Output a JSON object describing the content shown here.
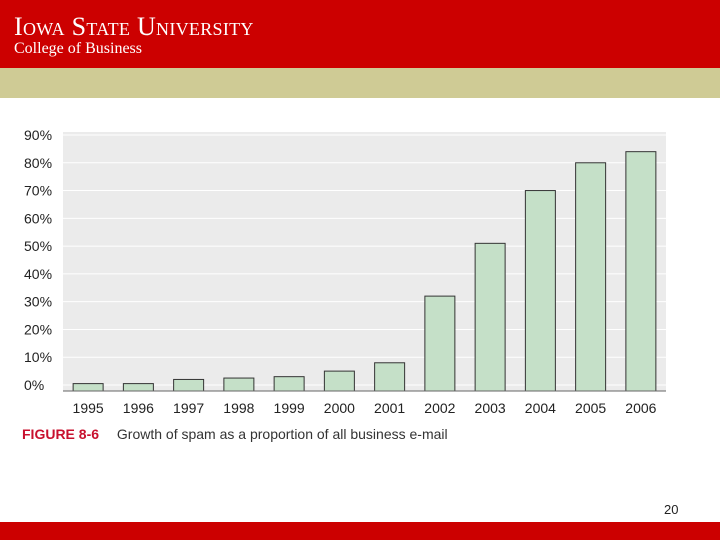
{
  "header": {
    "university": "Iowa State University",
    "college": "College of Business"
  },
  "colors": {
    "header_red": "#cc0000",
    "band": "#cfcb95",
    "bar_fill": "#c5e0c8",
    "plot_bg": "#ebebeb",
    "caption_accent": "#c8102e"
  },
  "caption": {
    "figure_label": "FIGURE 8-6",
    "text": "Growth of spam as a proportion of all business e-mail"
  },
  "page_number": "20",
  "chart_data": {
    "type": "bar",
    "title": "Growth of spam as a proportion of all business e-mail",
    "xlabel": "",
    "ylabel": "",
    "categories": [
      "1995",
      "1996",
      "1997",
      "1998",
      "1999",
      "2000",
      "2001",
      "2002",
      "2003",
      "2004",
      "2005",
      "2006"
    ],
    "values": [
      0.5,
      0.5,
      2,
      2.5,
      3,
      5,
      8,
      32,
      51,
      70,
      80,
      84
    ],
    "ylim": [
      0,
      90
    ],
    "yticks": [
      0,
      10,
      20,
      30,
      40,
      50,
      60,
      70,
      80,
      90
    ],
    "ytick_labels": [
      "0%",
      "10%",
      "20%",
      "30%",
      "40%",
      "50%",
      "60%",
      "70%",
      "80%",
      "90%"
    ],
    "grid": true,
    "legend": "none"
  }
}
